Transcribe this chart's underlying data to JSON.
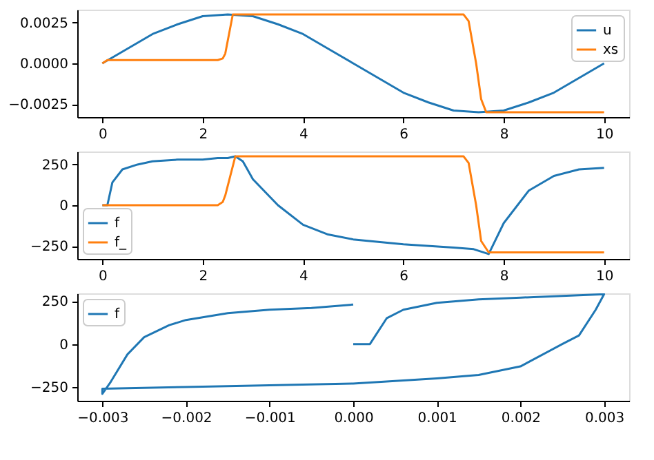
{
  "chart_data": [
    {
      "type": "line",
      "xlim": [
        -0.5,
        10.5
      ],
      "ylim": [
        -0.0033,
        0.0033
      ],
      "xticks": [
        0,
        2,
        4,
        6,
        8,
        10
      ],
      "yticks": [
        {
          "value": 0.0025,
          "label": "0.0025"
        },
        {
          "value": 0,
          "label": "0.0000"
        },
        {
          "value": -0.0025,
          "label": "−0.0025"
        }
      ],
      "legend": "top right",
      "series": [
        {
          "name": "u",
          "color": "#1f77b4",
          "x": [
            0,
            0.5,
            1,
            1.5,
            2,
            2.5,
            3,
            3.5,
            4,
            4.5,
            5,
            5.5,
            6,
            6.5,
            7,
            7.5,
            8,
            8.5,
            9,
            9.5,
            10
          ],
          "values": [
            0,
            0.0009,
            0.0018,
            0.0024,
            0.0029,
            0.003,
            0.0029,
            0.0024,
            0.0018,
            0.0009,
            0,
            -0.0009,
            -0.0018,
            -0.0024,
            -0.0029,
            -0.003,
            -0.0029,
            -0.0024,
            -0.0018,
            -0.0009,
            0
          ]
        },
        {
          "name": "xs",
          "color": "#ff7f0e",
          "x": [
            0,
            0.1,
            2.3,
            2.4,
            2.45,
            2.6,
            7.2,
            7.3,
            7.45,
            7.55,
            7.65,
            10
          ],
          "values": [
            0,
            0.0002,
            0.0002,
            0.0003,
            0.0006,
            0.003,
            0.003,
            0.0026,
            0.0,
            -0.0022,
            -0.003,
            -0.003
          ]
        }
      ]
    },
    {
      "type": "line",
      "xlim": [
        -0.5,
        10.5
      ],
      "ylim": [
        -330,
        330
      ],
      "xticks": [
        0,
        2,
        4,
        6,
        8,
        10
      ],
      "yticks": [
        250,
        0,
        {
          "value": -250,
          "label": "−250"
        }
      ],
      "legend": "bottom left",
      "series": [
        {
          "name": "f",
          "color": "#1f77b4",
          "x": [
            0,
            0.1,
            0.2,
            0.4,
            0.7,
            1,
            1.5,
            2,
            2.3,
            2.5,
            2.65,
            2.8,
            3,
            3.5,
            4,
            4.5,
            5,
            6,
            7,
            7.4,
            7.7,
            8,
            8.5,
            9,
            9.5,
            10
          ],
          "values": [
            0,
            0,
            140,
            220,
            250,
            270,
            280,
            280,
            290,
            290,
            300,
            270,
            160,
            0,
            -120,
            -180,
            -210,
            -240,
            -260,
            -270,
            -300,
            -110,
            90,
            180,
            220,
            230
          ]
        },
        {
          "name": "f_",
          "color": "#ff7f0e",
          "x": [
            0,
            2.3,
            2.4,
            2.45,
            2.65,
            7.2,
            7.3,
            7.45,
            7.55,
            7.7,
            10
          ],
          "values": [
            0,
            0,
            20,
            60,
            300,
            300,
            260,
            0,
            -220,
            -290,
            -290
          ]
        }
      ]
    },
    {
      "type": "line",
      "xlim": [
        -0.0033,
        0.0033
      ],
      "ylim": [
        -330,
        295
      ],
      "xticks": [
        {
          "value": -0.003,
          "label": "−0.003"
        },
        {
          "value": -0.002,
          "label": "−0.002"
        },
        {
          "value": -0.001,
          "label": "−0.001"
        },
        {
          "value": 0,
          "label": "0.000"
        },
        {
          "value": 0.001,
          "label": "0.001"
        },
        {
          "value": 0.002,
          "label": "0.002"
        },
        {
          "value": 0.003,
          "label": "0.003"
        }
      ],
      "yticks": [
        250,
        0,
        {
          "value": -250,
          "label": "−250"
        }
      ],
      "legend": "top left",
      "series": [
        {
          "name": "f",
          "color": "#1f77b4",
          "x": [
            0,
            0.0002,
            0.0004,
            0.0006,
            0.001,
            0.0015,
            0.002,
            0.0025,
            0.003,
            0.0029,
            0.0027,
            0.0025,
            0.002,
            0.0015,
            0.001,
            0,
            -0.001,
            -0.002,
            -0.003,
            -0.003,
            -0.0029,
            -0.0027,
            -0.0025,
            -0.0022,
            -0.002,
            -0.0015,
            -0.001,
            -0.0005,
            0
          ],
          "values": [
            0,
            0,
            150,
            200,
            240,
            260,
            270,
            280,
            290,
            200,
            50,
            0,
            -130,
            -180,
            -200,
            -230,
            -240,
            -250,
            -260,
            -290,
            -220,
            -60,
            40,
            110,
            140,
            180,
            200,
            210,
            230
          ]
        }
      ]
    }
  ]
}
